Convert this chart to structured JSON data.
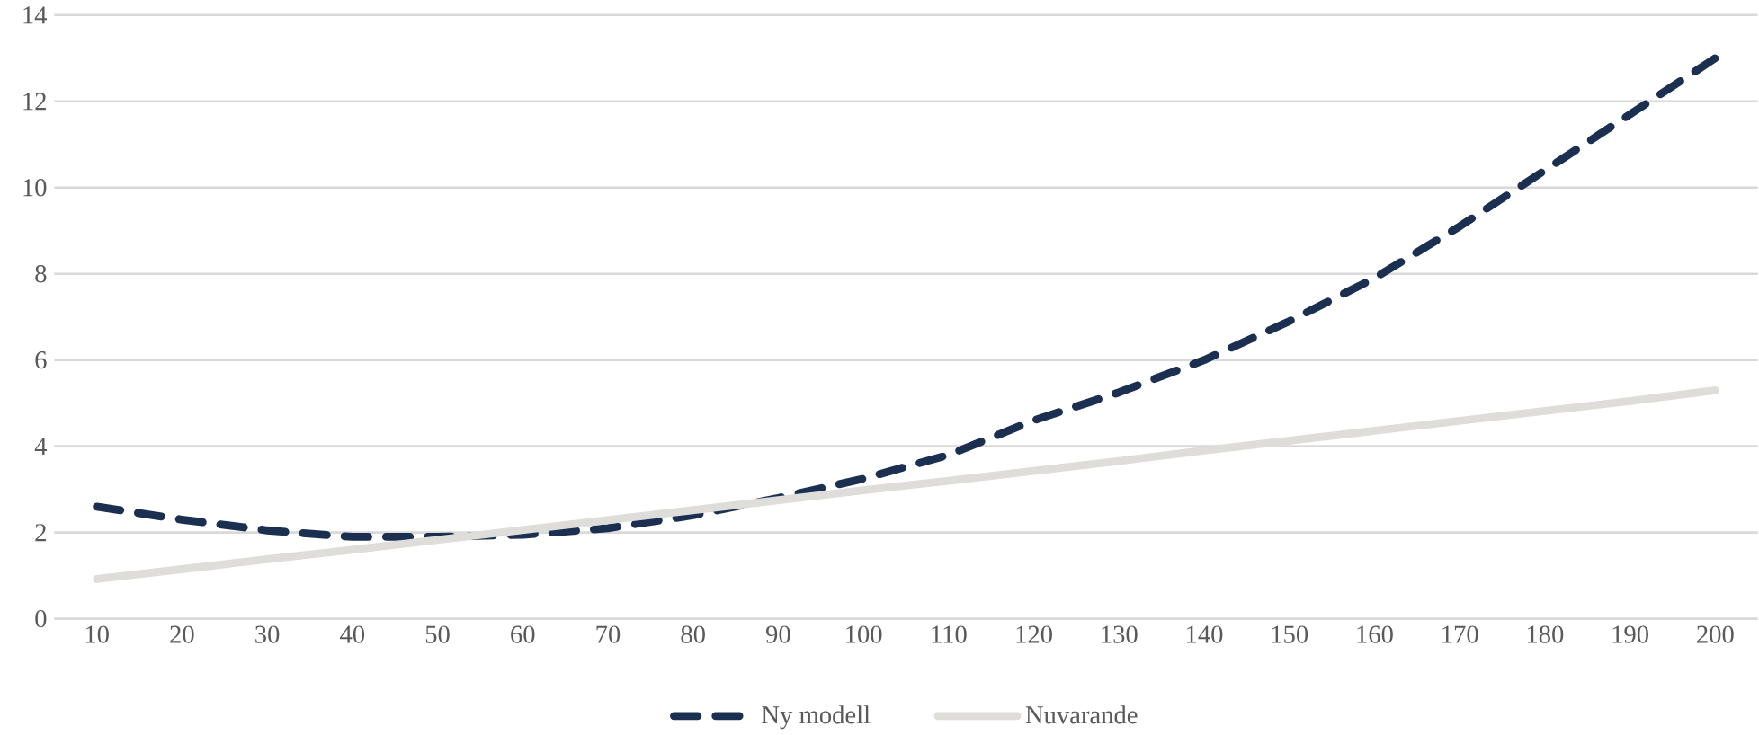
{
  "chart_data": {
    "type": "line",
    "categories": [
      "10",
      "20",
      "30",
      "40",
      "50",
      "60",
      "70",
      "80",
      "90",
      "100",
      "110",
      "120",
      "130",
      "140",
      "150",
      "160",
      "170",
      "180",
      "190",
      "200"
    ],
    "series": [
      {
        "name": "Ny modell",
        "color": "#1b3050",
        "line_style": "dashed",
        "values": [
          2.6,
          2.3,
          2.05,
          1.9,
          1.9,
          1.95,
          2.1,
          2.4,
          2.8,
          3.25,
          3.8,
          4.6,
          5.25,
          6.0,
          6.9,
          7.9,
          9.1,
          10.4,
          11.7,
          13.0
        ]
      },
      {
        "name": "Nuvarande",
        "color": "#deddd9",
        "line_style": "solid",
        "values": [
          0.92,
          1.15,
          1.38,
          1.6,
          1.83,
          2.06,
          2.29,
          2.52,
          2.75,
          2.98,
          3.2,
          3.43,
          3.66,
          3.9,
          4.13,
          4.36,
          4.59,
          4.82,
          5.05,
          5.3
        ]
      }
    ],
    "ylim": [
      0,
      14
    ],
    "yticks": [
      0,
      2,
      4,
      6,
      8,
      10,
      12,
      14
    ],
    "grid": "y",
    "legend": "bottom",
    "marker": "none"
  }
}
